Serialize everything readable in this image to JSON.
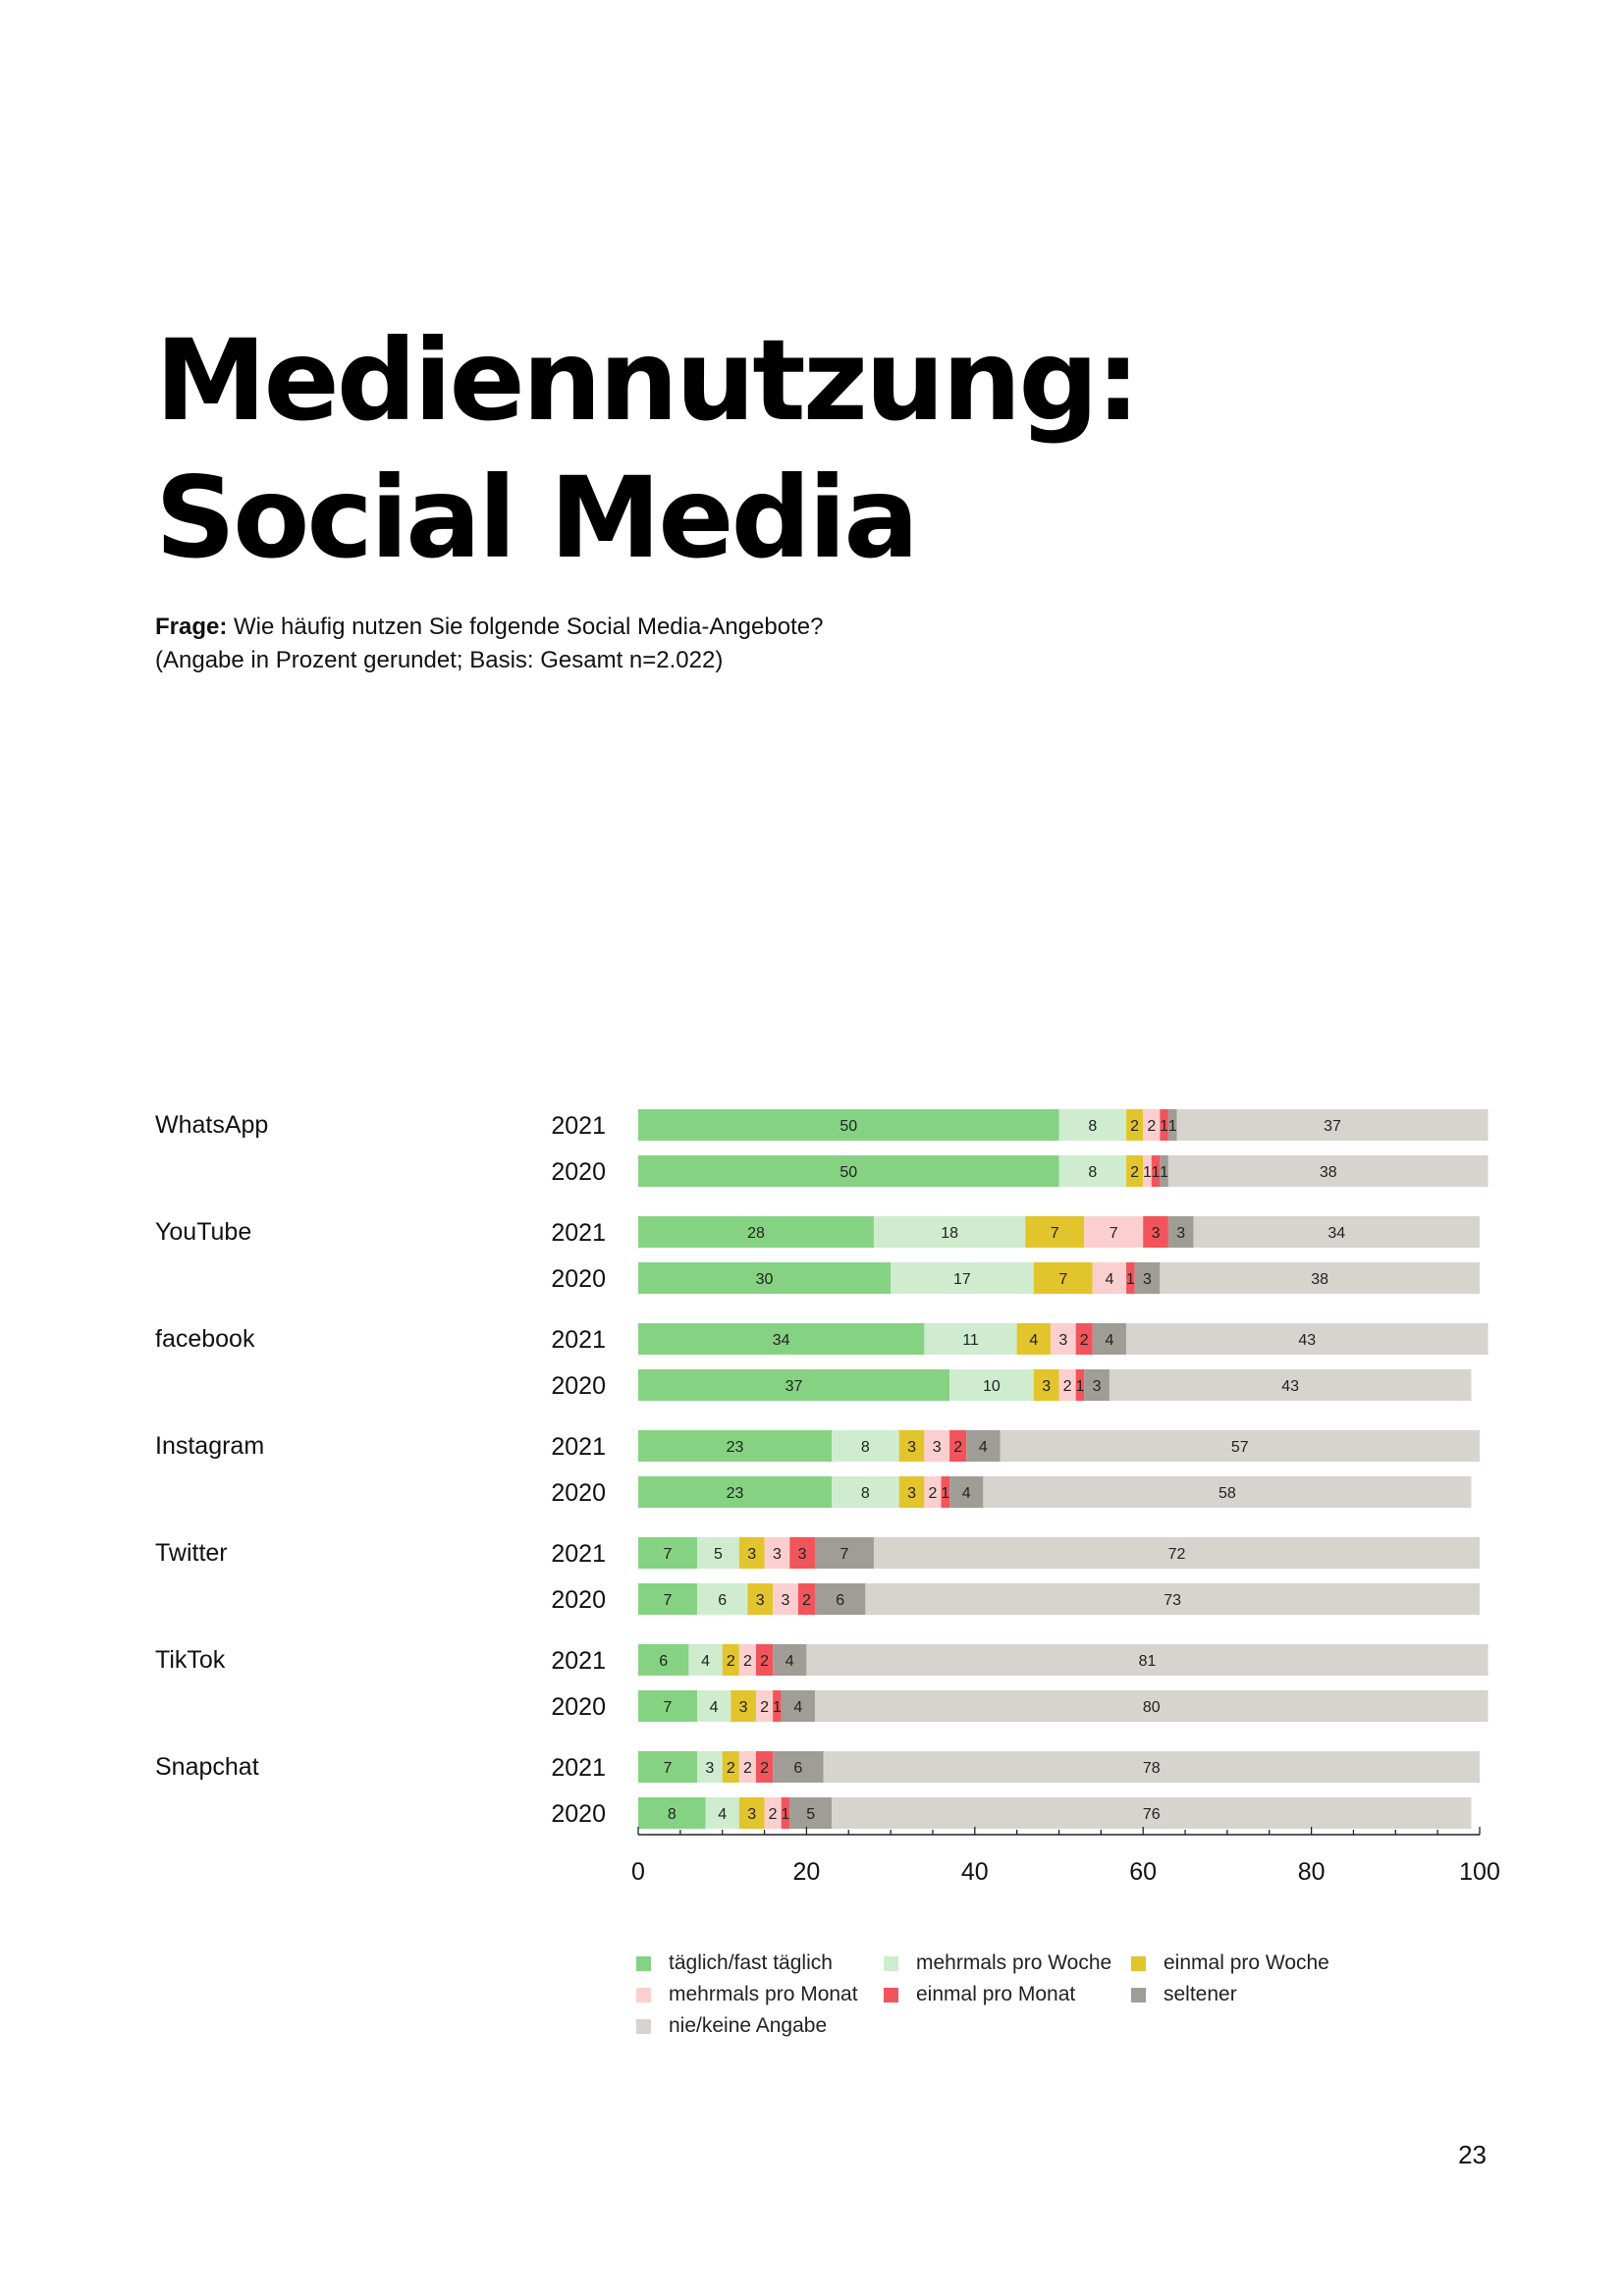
{
  "page": {
    "title_line1": "Mediennutzung:",
    "title_line2": "Social Media",
    "question_label": "Frage:",
    "question_text": " Wie häufig nutzen Sie folgende Social Media-Angebote?",
    "question_note": "(Angabe in Prozent gerundet; Basis: Gesamt n=2.022)",
    "page_number": "23"
  },
  "colors": {
    "taeglich": "#86d283",
    "mehrmals_woche": "#cfeccf",
    "einmal_woche": "#e2c42c",
    "mehrmals_monat": "#fbcfcf",
    "einmal_monat": "#f2545b",
    "seltener": "#a09d96",
    "nie": "#d7d4cf"
  },
  "chart_data": {
    "type": "bar",
    "orientation": "horizontal",
    "stacked": true,
    "xlim": [
      0,
      100
    ],
    "xticks": [
      "0",
      "20",
      "40",
      "60",
      "80",
      "100"
    ],
    "grid": false,
    "legend_position": "bottom",
    "series": [
      {
        "name": "täglich/fast täglich",
        "color_key": "taeglich"
      },
      {
        "name": "mehrmals pro Woche",
        "color_key": "mehrmals_woche"
      },
      {
        "name": "einmal pro Woche",
        "color_key": "einmal_woche"
      },
      {
        "name": "mehrmals pro Monat",
        "color_key": "mehrmals_monat"
      },
      {
        "name": "einmal pro Monat",
        "color_key": "einmal_monat"
      },
      {
        "name": "seltener",
        "color_key": "seltener"
      },
      {
        "name": "nie/keine Angabe",
        "color_key": "nie"
      }
    ],
    "groups": [
      {
        "name": "WhatsApp",
        "rows": [
          {
            "year": "2021",
            "values": [
              50,
              8,
              2,
              2,
              1,
              1,
              37
            ]
          },
          {
            "year": "2020",
            "values": [
              50,
              8,
              2,
              1,
              1,
              1,
              38
            ]
          }
        ]
      },
      {
        "name": "YouTube",
        "rows": [
          {
            "year": "2021",
            "values": [
              28,
              18,
              7,
              7,
              3,
              3,
              34
            ]
          },
          {
            "year": "2020",
            "values": [
              30,
              17,
              7,
              4,
              1,
              3,
              38
            ]
          }
        ]
      },
      {
        "name": "facebook",
        "rows": [
          {
            "year": "2021",
            "values": [
              34,
              11,
              4,
              3,
              2,
              4,
              43
            ]
          },
          {
            "year": "2020",
            "values": [
              37,
              10,
              3,
              2,
              1,
              3,
              43
            ]
          }
        ]
      },
      {
        "name": "Instagram",
        "rows": [
          {
            "year": "2021",
            "values": [
              23,
              8,
              3,
              3,
              2,
              4,
              57
            ]
          },
          {
            "year": "2020",
            "values": [
              23,
              8,
              3,
              2,
              1,
              4,
              58
            ]
          }
        ]
      },
      {
        "name": "Twitter",
        "rows": [
          {
            "year": "2021",
            "values": [
              7,
              5,
              3,
              3,
              3,
              7,
              72
            ]
          },
          {
            "year": "2020",
            "values": [
              7,
              6,
              3,
              3,
              2,
              6,
              73
            ]
          }
        ]
      },
      {
        "name": "TikTok",
        "rows": [
          {
            "year": "2021",
            "values": [
              6,
              4,
              2,
              2,
              2,
              4,
              81
            ]
          },
          {
            "year": "2020",
            "values": [
              7,
              4,
              3,
              2,
              1,
              4,
              80
            ]
          }
        ]
      },
      {
        "name": "Snapchat",
        "rows": [
          {
            "year": "2021",
            "values": [
              7,
              3,
              2,
              2,
              2,
              6,
              78
            ]
          },
          {
            "year": "2020",
            "values": [
              8,
              4,
              3,
              2,
              1,
              5,
              76
            ]
          }
        ]
      }
    ]
  }
}
